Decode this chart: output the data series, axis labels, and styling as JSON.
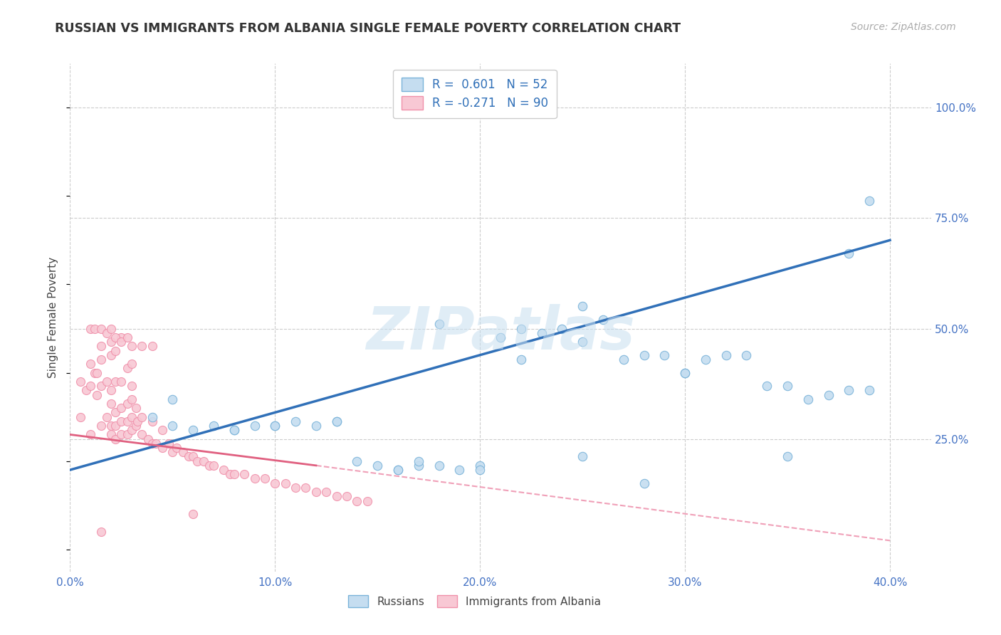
{
  "title": "RUSSIAN VS IMMIGRANTS FROM ALBANIA SINGLE FEMALE POVERTY CORRELATION CHART",
  "source": "Source: ZipAtlas.com",
  "ylabel": "Single Female Poverty",
  "ytick_labels": [
    "100.0%",
    "75.0%",
    "50.0%",
    "25.0%"
  ],
  "ytick_values": [
    1.0,
    0.75,
    0.5,
    0.25
  ],
  "xlim": [
    0.0,
    0.42
  ],
  "ylim": [
    -0.05,
    1.1
  ],
  "watermark_text": "ZIPatlas",
  "blue_color": "#7ab3d9",
  "blue_fill": "#c5ddf0",
  "pink_color": "#f090aa",
  "pink_fill": "#f8c8d4",
  "blue_line_color": "#3070b8",
  "pink_line_solid_color": "#e06080",
  "pink_line_dash_color": "#f0a0b8",
  "legend_R_blue": "R =  0.601",
  "legend_N_blue": "N = 52",
  "legend_R_pink": "R = -0.271",
  "legend_N_pink": "N = 90",
  "grid_color": "#cccccc",
  "background_color": "#ffffff",
  "blue_scatter_x": [
    0.04,
    0.05,
    0.06,
    0.07,
    0.08,
    0.09,
    0.1,
    0.11,
    0.12,
    0.13,
    0.14,
    0.15,
    0.16,
    0.17,
    0.17,
    0.18,
    0.19,
    0.2,
    0.21,
    0.22,
    0.23,
    0.24,
    0.25,
    0.25,
    0.26,
    0.27,
    0.28,
    0.29,
    0.3,
    0.31,
    0.32,
    0.33,
    0.34,
    0.35,
    0.36,
    0.37,
    0.38,
    0.39,
    0.38,
    0.39,
    0.35,
    0.3,
    0.28,
    0.25,
    0.22,
    0.2,
    0.18,
    0.16,
    0.13,
    0.1,
    0.08,
    0.05
  ],
  "blue_scatter_y": [
    0.3,
    0.28,
    0.27,
    0.28,
    0.27,
    0.28,
    0.28,
    0.29,
    0.28,
    0.29,
    0.2,
    0.19,
    0.18,
    0.19,
    0.2,
    0.19,
    0.18,
    0.19,
    0.48,
    0.5,
    0.49,
    0.5,
    0.47,
    0.55,
    0.52,
    0.43,
    0.44,
    0.44,
    0.4,
    0.43,
    0.44,
    0.44,
    0.37,
    0.21,
    0.34,
    0.35,
    0.36,
    0.36,
    0.67,
    0.79,
    0.37,
    0.4,
    0.15,
    0.21,
    0.43,
    0.18,
    0.51,
    0.18,
    0.29,
    0.28,
    0.27,
    0.34
  ],
  "pink_scatter_x": [
    0.005,
    0.005,
    0.008,
    0.01,
    0.01,
    0.01,
    0.012,
    0.013,
    0.013,
    0.015,
    0.015,
    0.015,
    0.018,
    0.018,
    0.02,
    0.02,
    0.02,
    0.02,
    0.02,
    0.022,
    0.022,
    0.022,
    0.022,
    0.022,
    0.025,
    0.025,
    0.025,
    0.025,
    0.028,
    0.028,
    0.028,
    0.028,
    0.03,
    0.03,
    0.03,
    0.03,
    0.03,
    0.032,
    0.032,
    0.033,
    0.035,
    0.035,
    0.038,
    0.04,
    0.04,
    0.042,
    0.045,
    0.045,
    0.048,
    0.05,
    0.052,
    0.055,
    0.058,
    0.06,
    0.062,
    0.065,
    0.068,
    0.07,
    0.075,
    0.078,
    0.08,
    0.085,
    0.09,
    0.095,
    0.1,
    0.105,
    0.11,
    0.115,
    0.12,
    0.125,
    0.13,
    0.135,
    0.14,
    0.145,
    0.015,
    0.02,
    0.025,
    0.03,
    0.035,
    0.04,
    0.01,
    0.012,
    0.015,
    0.018,
    0.02,
    0.022,
    0.025,
    0.028,
    0.015,
    0.06
  ],
  "pink_scatter_y": [
    0.3,
    0.38,
    0.36,
    0.26,
    0.37,
    0.42,
    0.4,
    0.35,
    0.4,
    0.28,
    0.37,
    0.43,
    0.3,
    0.38,
    0.26,
    0.28,
    0.33,
    0.36,
    0.44,
    0.25,
    0.28,
    0.31,
    0.38,
    0.45,
    0.26,
    0.29,
    0.32,
    0.38,
    0.26,
    0.29,
    0.33,
    0.41,
    0.27,
    0.3,
    0.34,
    0.37,
    0.42,
    0.28,
    0.32,
    0.29,
    0.26,
    0.3,
    0.25,
    0.24,
    0.29,
    0.24,
    0.23,
    0.27,
    0.24,
    0.22,
    0.23,
    0.22,
    0.21,
    0.21,
    0.2,
    0.2,
    0.19,
    0.19,
    0.18,
    0.17,
    0.17,
    0.17,
    0.16,
    0.16,
    0.15,
    0.15,
    0.14,
    0.14,
    0.13,
    0.13,
    0.12,
    0.12,
    0.11,
    0.11,
    0.46,
    0.47,
    0.48,
    0.46,
    0.46,
    0.46,
    0.5,
    0.5,
    0.5,
    0.49,
    0.5,
    0.48,
    0.47,
    0.48,
    0.04,
    0.08
  ],
  "x_tick_positions": [
    0.0,
    0.1,
    0.2,
    0.3,
    0.4
  ],
  "x_tick_labels": [
    "0.0%",
    "10.0%",
    "20.0%",
    "30.0%",
    "40.0%"
  ]
}
